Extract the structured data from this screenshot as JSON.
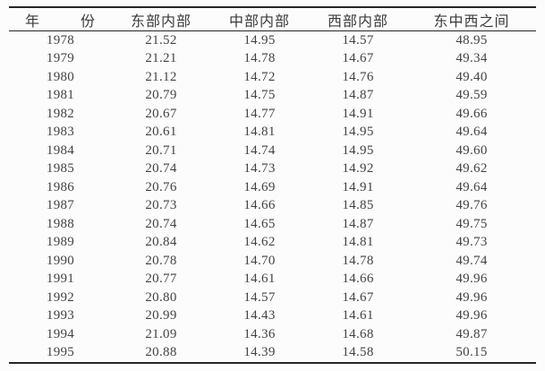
{
  "colors": {
    "background": "#fcfcfc",
    "rule_line": "#262626",
    "text": "#3e3e3e"
  },
  "table": {
    "headers": [
      "年 份",
      "东部内部",
      "中部内部",
      "西部内部",
      "东中西之间"
    ],
    "rows": [
      [
        "1978",
        "21.52",
        "14.95",
        "14.57",
        "48.95"
      ],
      [
        "1979",
        "21.21",
        "14.78",
        "14.67",
        "49.34"
      ],
      [
        "1980",
        "21.12",
        "14.72",
        "14.76",
        "49.40"
      ],
      [
        "1981",
        "20.79",
        "14.75",
        "14.87",
        "49.59"
      ],
      [
        "1982",
        "20.67",
        "14.77",
        "14.91",
        "49.66"
      ],
      [
        "1983",
        "20.61",
        "14.81",
        "14.95",
        "49.64"
      ],
      [
        "1984",
        "20.71",
        "14.74",
        "14.95",
        "49.60"
      ],
      [
        "1985",
        "20.74",
        "14.73",
        "14.92",
        "49.62"
      ],
      [
        "1986",
        "20.76",
        "14.69",
        "14.91",
        "49.64"
      ],
      [
        "1987",
        "20.73",
        "14.66",
        "14.85",
        "49.76"
      ],
      [
        "1988",
        "20.74",
        "14.65",
        "14.87",
        "49.75"
      ],
      [
        "1989",
        "20.84",
        "14.62",
        "14.81",
        "49.73"
      ],
      [
        "1990",
        "20.78",
        "14.70",
        "14.78",
        "49.74"
      ],
      [
        "1991",
        "20.77",
        "14.61",
        "14.66",
        "49.96"
      ],
      [
        "1992",
        "20.80",
        "14.57",
        "14.67",
        "49.96"
      ],
      [
        "1993",
        "20.99",
        "14.43",
        "14.61",
        "49.96"
      ],
      [
        "1994",
        "21.09",
        "14.36",
        "14.68",
        "49.87"
      ],
      [
        "1995",
        "20.88",
        "14.39",
        "14.58",
        "50.15"
      ]
    ]
  }
}
